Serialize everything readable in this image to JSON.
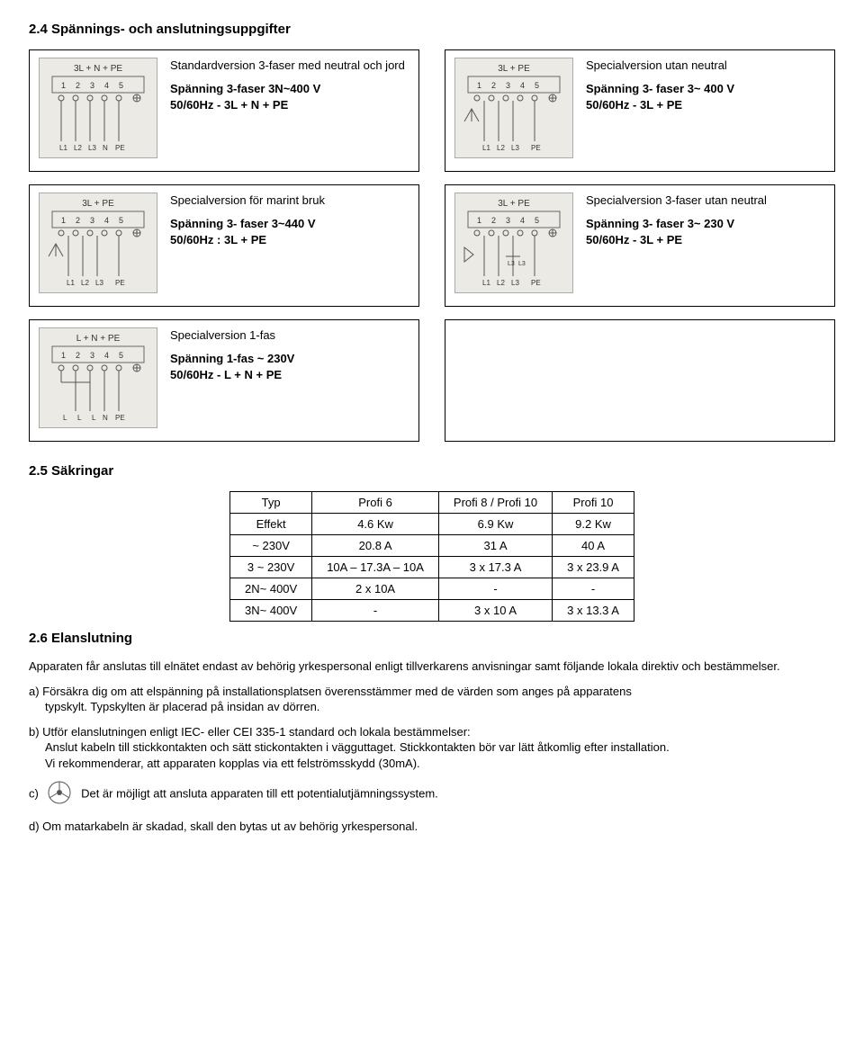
{
  "sections": {
    "s24_title": "2.4 Spännings- och anslutningsuppgifter",
    "s25_title": "2.5 Säkringar",
    "s26_title": "2.6 Elanslutning"
  },
  "diagrams": {
    "d1": {
      "header": "3L + N + PE",
      "title": "Standardversion 3-faser med neutral och jord",
      "line1": "Spänning 3-faser 3N~400  V",
      "line2": "50/60Hz - 3L + N + PE"
    },
    "d2": {
      "header": "3L + PE",
      "title": "Specialversion utan neutral",
      "line1": "Spänning 3- faser 3~ 400 V",
      "line2": "50/60Hz - 3L + PE"
    },
    "d3": {
      "header": "3L + PE",
      "title": "Specialversion för marint bruk",
      "line1": "Spänning 3- faser 3~440 V",
      "line2": "50/60Hz : 3L + PE"
    },
    "d4": {
      "header": "3L + PE",
      "title": "Specialversion 3-faser utan neutral",
      "line1": "Spänning 3- faser 3~ 230 V",
      "line2": "50/60Hz - 3L + PE"
    },
    "d5": {
      "header": "L + N + PE",
      "title": "Specialversion 1-fas",
      "line1": "Spänning 1-fas ~ 230V",
      "line2": "50/60Hz - L + N + PE"
    }
  },
  "fuse_table": {
    "columns": [
      "Typ",
      "Profi 6",
      "Profi 8 / Profi 10",
      "Profi 10"
    ],
    "rows": [
      [
        "Effekt",
        "4.6 Kw",
        "6.9 Kw",
        "9.2 Kw"
      ],
      [
        "~ 230V",
        "20.8 A",
        "31 A",
        "40 A"
      ],
      [
        "3 ~ 230V",
        "10A – 17.3A – 10A",
        "3 x 17.3 A",
        "3 x 23.9 A"
      ],
      [
        "2N~ 400V",
        "2 x 10A",
        "-",
        "-"
      ],
      [
        "3N~ 400V",
        "-",
        "3 x 10 A",
        "3 x 13.3 A"
      ]
    ]
  },
  "paragraphs": {
    "p1": "Apparaten får anslutas till elnätet endast av behörig yrkespersonal enligt tillverkarens anvisningar samt följande lokala direktiv och bestämmelser.",
    "p2a": "a) Försäkra dig om att elspänning på installationsplatsen överensstämmer med de värden som anges på apparatens",
    "p2b": "typskylt. Typskylten är placerad på insidan av dörren.",
    "p3a": "b) Utför elanslutningen enligt IEC- eller CEI 335-1 standard och lokala bestämmelser:",
    "p3b": "Anslut kabeln till stickkontakten och sätt stickontakten i vägguttaget. Stickkontakten bör var lätt åtkomlig efter  installation.",
    "p3c": "Vi rekommenderar, att apparaten kopplas via ett felströmsskydd (30mA).",
    "p4a": "c)",
    "p4b": "Det är möjligt att ansluta apparaten till ett potentialutjämningssystem.",
    "p5": "d) Om matarkabeln är skadad, skall den bytas ut av behörig yrkespersonal."
  },
  "colors": {
    "diagram_bg": "#eceae5",
    "border": "#000000"
  }
}
